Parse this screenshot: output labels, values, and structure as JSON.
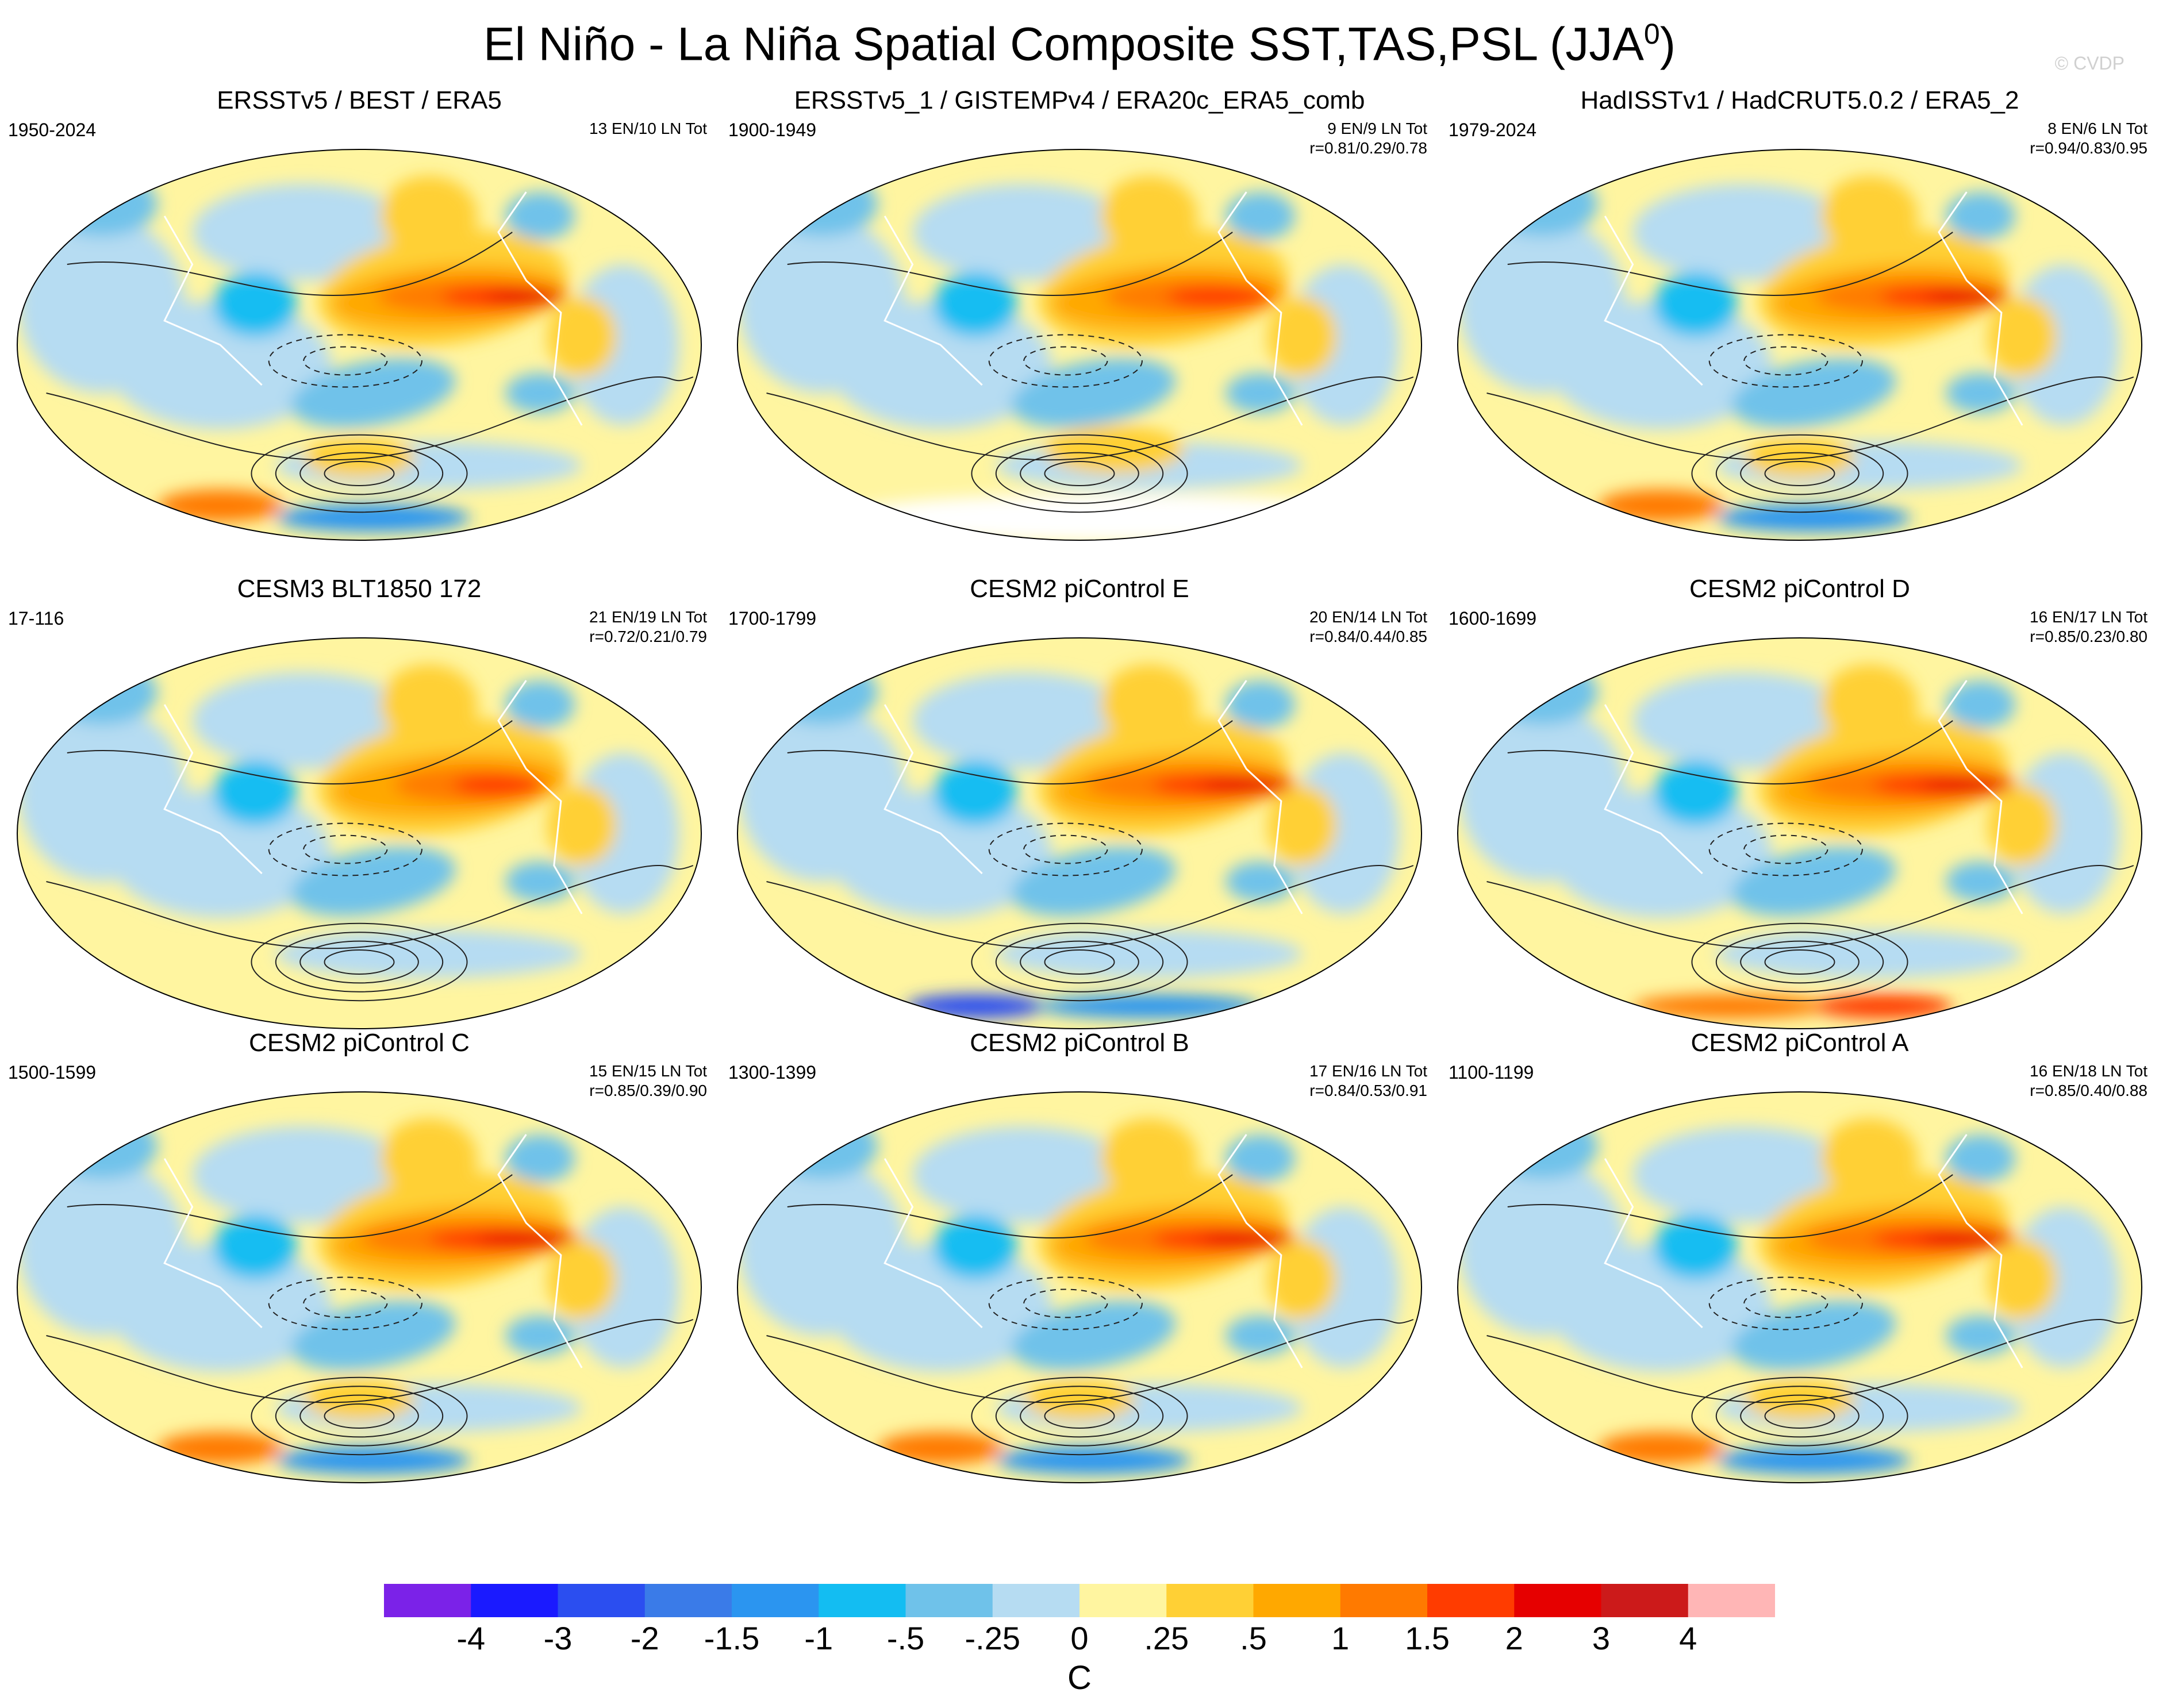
{
  "title": "El Niño - La Niña Spatial Composite SST,TAS,PSL (JJA",
  "title_superscript": "0",
  "title_suffix": ")",
  "watermark": "© CVDP",
  "chart_data": {
    "type": "heatmap",
    "description_type": "map composite grid",
    "units": "C",
    "colorbar": {
      "labels": [
        "-4",
        "-3",
        "-2",
        "-1.5",
        "-1",
        "-.5",
        "-.25",
        "0",
        ".25",
        ".5",
        "1",
        "1.5",
        "2",
        "3",
        "4"
      ],
      "colors": [
        "#7b22e8",
        "#1a1aff",
        "#2b4ef0",
        "#3a7be8",
        "#2b95f0",
        "#13bdf2",
        "#6fc2ea",
        "#b6dcf2",
        "#fff5a0",
        "#ffd035",
        "#ffa800",
        "#ff7a00",
        "#ff3c00",
        "#e60000",
        "#cc1a1a",
        "#ffb6b6"
      ]
    },
    "panels": [
      {
        "title": "ERSSTv5 / BEST / ERA5",
        "years": "1950-2024",
        "counts": "13 EN/10 LN Tot",
        "corr": "",
        "nino_strength": 0.82,
        "antarctic": "mixed"
      },
      {
        "title": "ERSSTv5_1 / GISTEMPv4 / ERA20c_ERA5_comb",
        "years": "1900-1949",
        "counts": "9 EN/9 LN Tot",
        "corr": "r=0.81/0.29/0.78",
        "nino_strength": 0.75,
        "antarctic": "white"
      },
      {
        "title": "HadISSTv1 / HadCRUT5.0.2 / ERA5_2",
        "years": "1979-2024",
        "counts": "8 EN/6 LN Tot",
        "corr": "r=0.94/0.83/0.95",
        "nino_strength": 0.85,
        "antarctic": "mixed"
      },
      {
        "title": "CESM3 BLT1850 172",
        "years": "17-116",
        "counts": "21 EN/19 LN Tot",
        "corr": "r=0.72/0.21/0.79",
        "nino_strength": 0.65,
        "antarctic": "yellow"
      },
      {
        "title": "CESM2 piControl E",
        "years": "1700-1799",
        "counts": "20 EN/14 LN Tot",
        "corr": "r=0.84/0.44/0.85",
        "nino_strength": 0.95,
        "antarctic": "blue"
      },
      {
        "title": "CESM2 piControl D",
        "years": "1600-1699",
        "counts": "16 EN/17 LN Tot",
        "corr": "r=0.85/0.23/0.80",
        "nino_strength": 0.95,
        "antarctic": "red"
      },
      {
        "title": "CESM2 piControl C",
        "years": "1500-1599",
        "counts": "15 EN/15 LN Tot",
        "corr": "r=0.85/0.39/0.90",
        "nino_strength": 1.0,
        "antarctic": "mixed"
      },
      {
        "title": "CESM2 piControl B",
        "years": "1300-1399",
        "counts": "17 EN/16 LN Tot",
        "corr": "r=0.84/0.53/0.91",
        "nino_strength": 0.95,
        "antarctic": "mixed"
      },
      {
        "title": "CESM2 piControl A",
        "years": "1100-1199",
        "counts": "16 EN/18 LN Tot",
        "corr": "r=0.85/0.40/0.88",
        "nino_strength": 0.95,
        "antarctic": "mixed"
      }
    ]
  }
}
